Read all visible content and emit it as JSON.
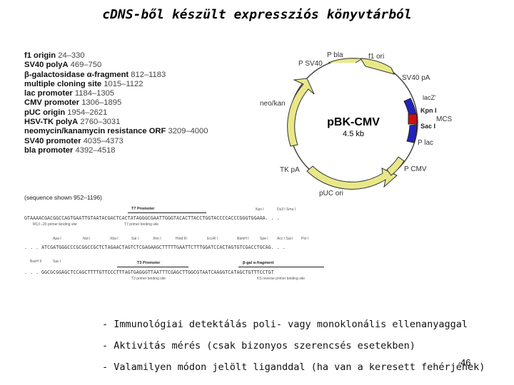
{
  "title": "cDNS-ből készült expressziós könyvtárból",
  "features": [
    {
      "name": "f1 origin",
      "range": "24–330"
    },
    {
      "name": "SV40 polyA",
      "range": "469–750"
    },
    {
      "name": "β-galactosidase α-fragment",
      "range": "812–1183"
    },
    {
      "name": "multiple cloning site",
      "range": "1015–1122"
    },
    {
      "name": "lac promoter",
      "range": "1184–1305"
    },
    {
      "name": "CMV promoter",
      "range": "1306–1895"
    },
    {
      "name": "pUC origin",
      "range": "1954–2621"
    },
    {
      "name": "HSV-TK polyA",
      "range": "2760–3031"
    },
    {
      "name": "neomycin/kanamycin resistance ORF",
      "range": "3209–4000"
    },
    {
      "name": "SV40 promoter",
      "range": "4035–4373"
    },
    {
      "name": "bla promoter",
      "range": "4392–4518"
    }
  ],
  "plasmid": {
    "name": "pBK-CMV",
    "size": "4.5 kb",
    "labels": {
      "p_bla": "P bla",
      "f1_ori": "f1 ori",
      "p_sv40": "P SV40",
      "sv40_pa": "SV40 pA",
      "neo_kan": "neo/kan",
      "lacz": "lacZ'",
      "kpn": "Kpn I",
      "mcs": "MCS",
      "sac": "Sac I",
      "plac": "P lac",
      "tk_pa": "TK pA",
      "pcmv": "P CMV",
      "puc": "pUC ori"
    },
    "colors": {
      "ring": "#e8e889",
      "mcs_red": "#cc1111",
      "mcs_blue": "#2222bb"
    }
  },
  "sequence": {
    "note": "(sequence shown 952–1196)",
    "t7_promoter": "T7 Promoter",
    "t3_promoter": "T3 Promoter",
    "bgal": "β-gal α-fragment",
    "line1": "GTAAAACGACGGCCAGTGAATTGTAATACGACTCACTATAGGGCGAATTGGGTACACTTACCTGGTACCCCACCCGGGTGGAAA. . .",
    "line2": ". . . ATCGATGGGCCCGCGGCCGCTCTAGAACTAGTCTCGAGAAGCTTTTTGAATTCTTTGGATCCACTAGTGTCGACCTGCAG. . .",
    "line3": ". . . GGCGCGGAGCTCCAGCTTTTGTTCCCTTTAGTGAGGGTTAATTTCGAGCTTGGCGTAATCAAGGTCATAGCTGTTTCCTGT",
    "primer1a": "M13 –20 primer binding site",
    "primer1b": "T7 primer binding site",
    "primer3a": "T3 primer binding site",
    "primer3b": "KS reverse primer binding site",
    "sites1": [
      "Kpn I",
      "Ds3 I Sma I"
    ],
    "sites2": [
      "Apa I",
      "Not I",
      "Xba I",
      "Sal I",
      "Xho I",
      "Hind III",
      "EcoR I",
      "BamH I",
      "Spe I",
      "Acc I Sal I",
      "Pst I"
    ],
    "sites3": [
      "BssH II",
      "Sac I"
    ]
  },
  "bullets": [
    "- Immunológiai detektálás poli- vagy monoklonális ellenanyaggal",
    "- Aktivitás mérés (csak bizonyos szerencsés esetekben)",
    "- Valamilyen módon jelölt liganddal (ha van a keresett fehérjének)"
  ],
  "page_number": "46"
}
